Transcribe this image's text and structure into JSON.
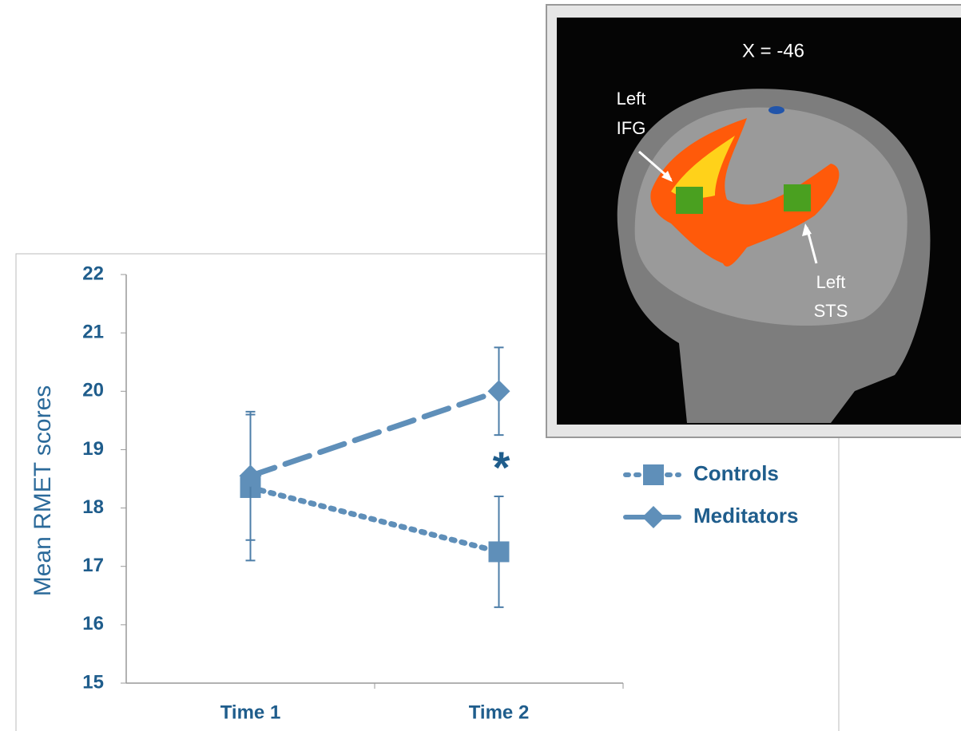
{
  "chart_data": {
    "type": "line",
    "ylabel": "Mean RMET scores",
    "categories": [
      "Time 1",
      "Time 2"
    ],
    "series": [
      {
        "name": "Controls",
        "color": "#5f8fb9",
        "line_style": "dotted",
        "marker": "square",
        "values": [
          18.35,
          17.25
        ],
        "errors": [
          1.25,
          0.95
        ]
      },
      {
        "name": "Meditators",
        "color": "#5f8fb9",
        "line_style": "dashed",
        "marker": "diamond",
        "values": [
          18.55,
          20.0
        ],
        "errors": [
          1.1,
          0.75
        ]
      }
    ],
    "ylim": [
      15,
      22
    ],
    "yticks": [
      15,
      16,
      17,
      18,
      19,
      20,
      21,
      22
    ],
    "annotation": "*"
  },
  "inset": {
    "slice_label": "X = -46",
    "labels": [
      {
        "lines": [
          "Left",
          "IFG"
        ]
      },
      {
        "lines": [
          "Left",
          "STS"
        ]
      }
    ]
  }
}
